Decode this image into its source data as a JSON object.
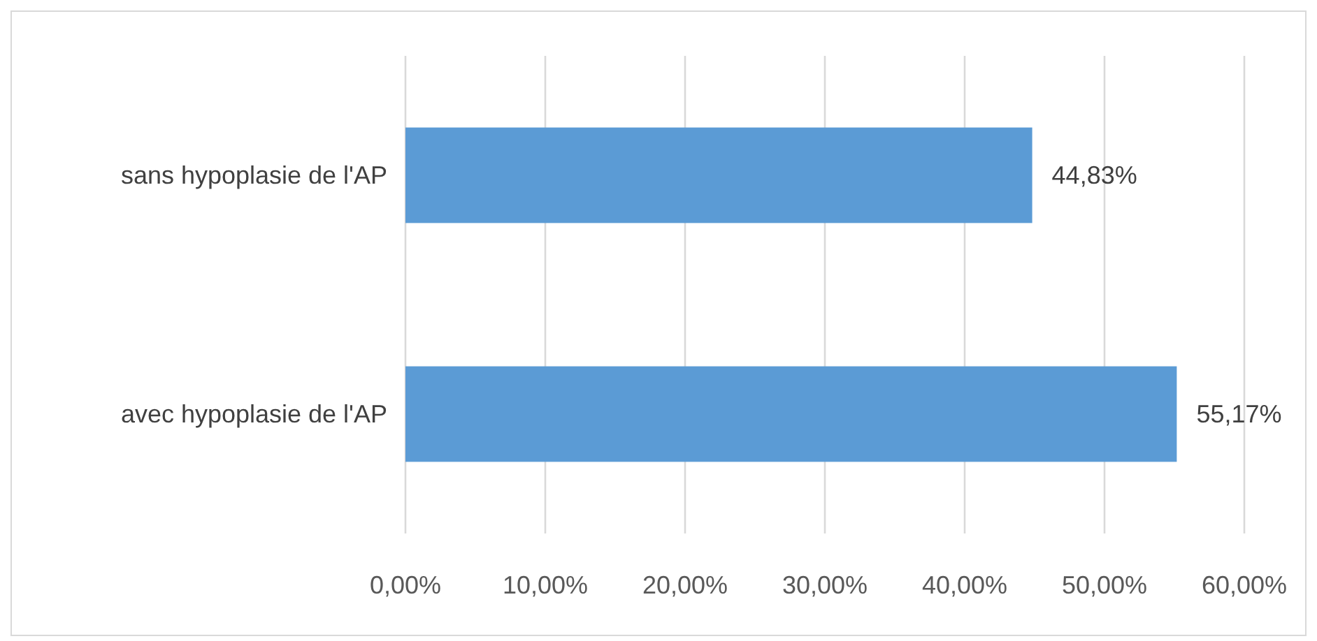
{
  "chart_data": {
    "type": "bar",
    "orientation": "horizontal",
    "categories": [
      "sans hypoplasie de l'AP",
      "avec hypoplasie de l'AP"
    ],
    "values": [
      44.83,
      55.17
    ],
    "value_labels": [
      "44,83%",
      "55,17%"
    ],
    "color": "#5b9bd5",
    "xlim": [
      0,
      60
    ],
    "xticks": [
      {
        "value": 0,
        "label": "0,00%"
      },
      {
        "value": 10,
        "label": "10,00%"
      },
      {
        "value": 20,
        "label": "20,00%"
      },
      {
        "value": 30,
        "label": "30,00%"
      },
      {
        "value": 40,
        "label": "40,00%"
      },
      {
        "value": 50,
        "label": "50,00%"
      },
      {
        "value": 60,
        "label": "60,00%"
      }
    ],
    "grid": "x"
  }
}
